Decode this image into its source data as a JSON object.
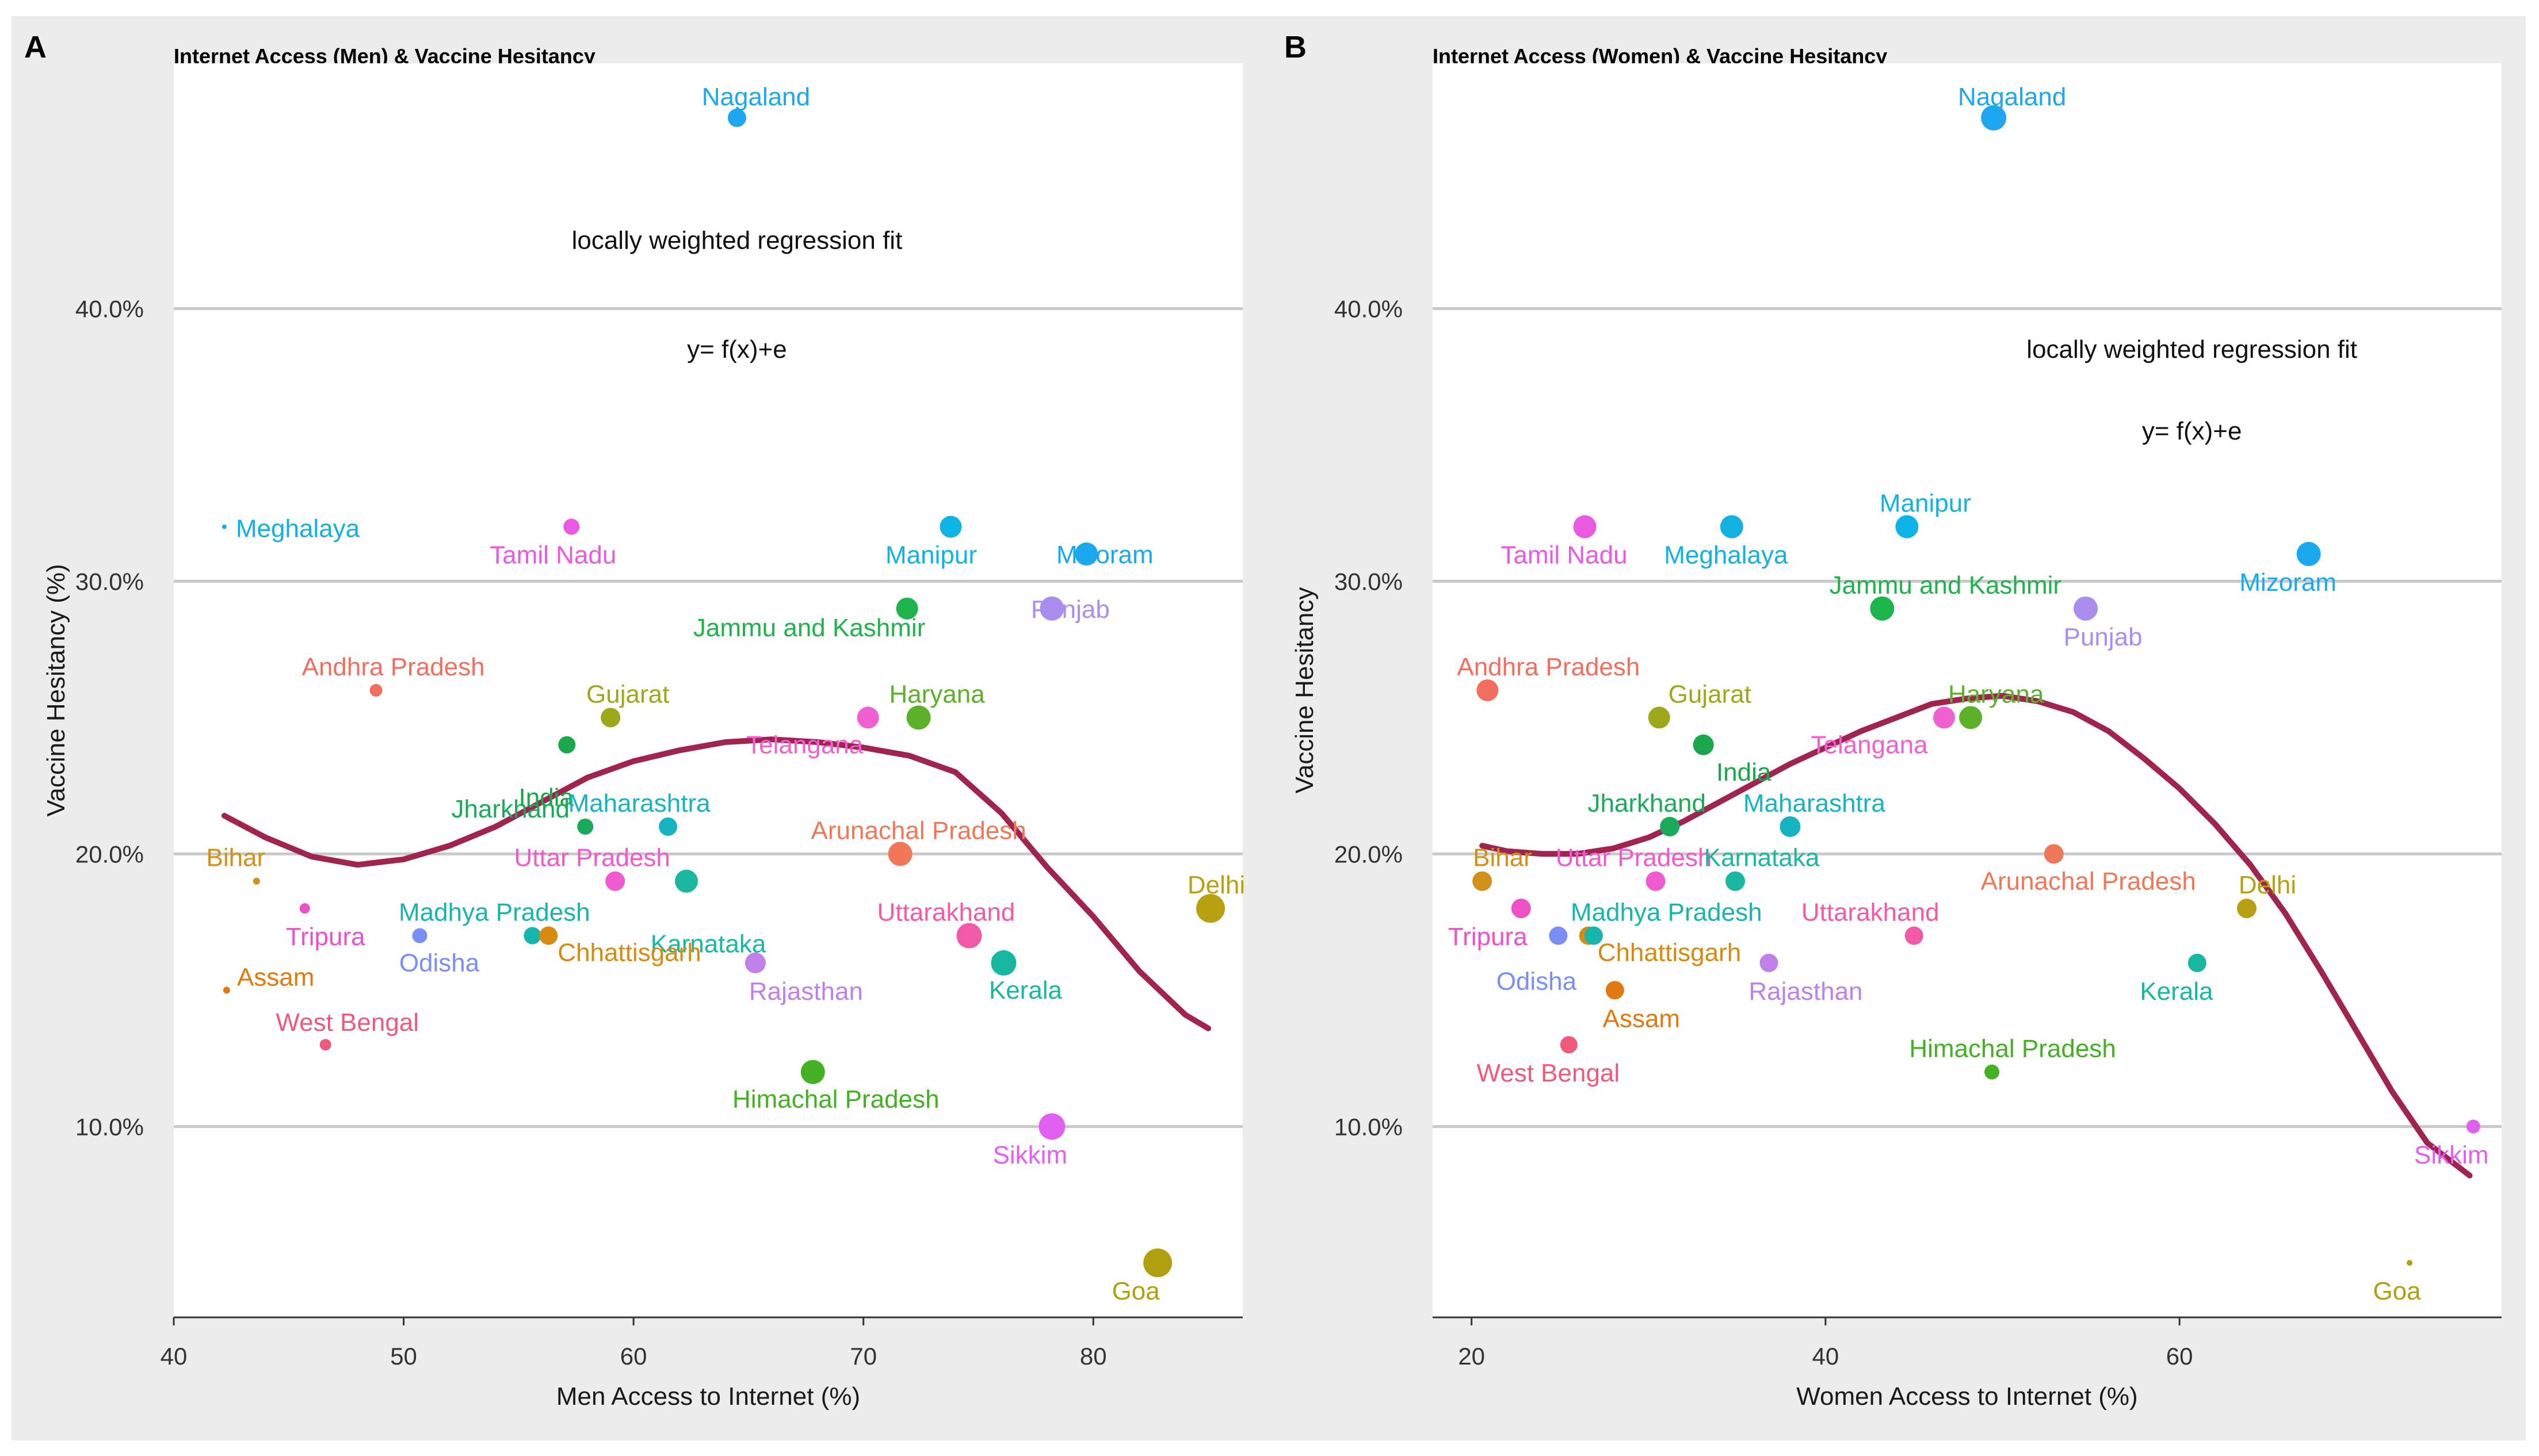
{
  "figure": {
    "panel_labels": [
      "A",
      "B"
    ]
  },
  "chart_data": [
    {
      "type": "scatter",
      "panel": "A",
      "title": "Internet Access (Men) & Vaccine Hesitancy",
      "xlabel": "Men Access to Internet (%)",
      "ylabel": "Vaccine Hesitancy (%)",
      "xlim": [
        40,
        86.5
      ],
      "ylim": [
        3.0,
        49.0
      ],
      "xticks": [
        40,
        50,
        60,
        70,
        80
      ],
      "xtick_labels": [
        "40",
        "50",
        "60",
        "70",
        "80"
      ],
      "yticks": [
        10,
        20,
        30,
        40
      ],
      "ytick_labels": [
        "10.0%",
        "20.0%",
        "30.0%",
        "40.0%"
      ],
      "annotations": [
        {
          "text": "locally weighted regression fit",
          "x": 64.5,
          "y": 42.2
        },
        {
          "text": "y= f(x)+e",
          "x": 64.5,
          "y": 38.2
        }
      ],
      "fit_curve": {
        "name": "LOESS fit",
        "x": [
          42.2,
          44,
          46,
          48,
          50,
          52,
          54,
          56,
          58,
          60,
          62,
          64,
          66,
          68,
          70,
          72,
          74,
          76,
          78,
          80,
          82,
          84,
          85.0
        ],
        "y": [
          21.4,
          20.6,
          19.9,
          19.6,
          19.8,
          20.3,
          21.0,
          21.9,
          22.8,
          23.4,
          23.8,
          24.1,
          24.2,
          24.1,
          23.9,
          23.6,
          23.0,
          21.5,
          19.5,
          17.7,
          15.7,
          14.1,
          13.6
        ]
      },
      "points": [
        {
          "state": "Nagaland",
          "x": 64.5,
          "y": 47.0,
          "size": 32,
          "color": "#1ea6f0"
        },
        {
          "state": "Meghalaya",
          "x": 42.2,
          "y": 32.0,
          "size": 8,
          "color": "#14b0e0"
        },
        {
          "state": "Tamil Nadu",
          "x": 57.3,
          "y": 32.0,
          "size": 28,
          "color": "#ea5ae0"
        },
        {
          "state": "Manipur",
          "x": 73.8,
          "y": 32.0,
          "size": 38,
          "color": "#0fb4e6"
        },
        {
          "state": "Mizoram",
          "x": 79.7,
          "y": 31.0,
          "size": 40,
          "color": "#1aa8ee"
        },
        {
          "state": "Punjab",
          "x": 78.2,
          "y": 29.0,
          "size": 42,
          "color": "#a98ef0"
        },
        {
          "state": "Jammu and Kashmir",
          "x": 71.9,
          "y": 29.0,
          "size": 38,
          "color": "#1fb34c"
        },
        {
          "state": "Andhra Pradesh",
          "x": 48.8,
          "y": 26.0,
          "size": 22,
          "color": "#f26e5e"
        },
        {
          "state": "Gujarat",
          "x": 59.0,
          "y": 25.0,
          "size": 34,
          "color": "#9da81a"
        },
        {
          "state": "Telangana",
          "x": 70.2,
          "y": 25.0,
          "size": 38,
          "color": "#f060d0"
        },
        {
          "state": "Haryana",
          "x": 72.4,
          "y": 25.0,
          "size": 42,
          "color": "#5cb02a"
        },
        {
          "state": "India",
          "x": 57.1,
          "y": 24.0,
          "size": 30,
          "color": "#1aa64a"
        },
        {
          "state": "Jharkhand",
          "x": 57.9,
          "y": 21.0,
          "size": 28,
          "color": "#1aaa5a"
        },
        {
          "state": "Maharashtra",
          "x": 61.5,
          "y": 21.0,
          "size": 32,
          "color": "#18b3c0"
        },
        {
          "state": "Arunachal Pradesh",
          "x": 71.6,
          "y": 20.0,
          "size": 42,
          "color": "#f07858"
        },
        {
          "state": "Uttar Pradesh",
          "x": 59.2,
          "y": 19.0,
          "size": 34,
          "color": "#f05ad0"
        },
        {
          "state": "Karnataka",
          "x": 62.3,
          "y": 19.0,
          "size": 40,
          "color": "#1ab8a0"
        },
        {
          "state": "Bihar",
          "x": 43.6,
          "y": 19.0,
          "size": 12,
          "color": "#d0901a"
        },
        {
          "state": "Delhi",
          "x": 85.1,
          "y": 18.0,
          "size": 50,
          "color": "#b8a010"
        },
        {
          "state": "Tripura",
          "x": 45.7,
          "y": 18.0,
          "size": 18,
          "color": "#ee50c8"
        },
        {
          "state": "Uttarakhand",
          "x": 74.6,
          "y": 17.0,
          "size": 44,
          "color": "#f25aa8"
        },
        {
          "state": "Odisha",
          "x": 50.7,
          "y": 17.0,
          "size": 26,
          "color": "#7a8ef5"
        },
        {
          "state": "Madhya Pradesh",
          "x": 55.6,
          "y": 17.0,
          "size": 30,
          "color": "#18b4b0"
        },
        {
          "state": "Chhattisgarh",
          "x": 56.3,
          "y": 17.0,
          "size": 32,
          "color": "#d88a10"
        },
        {
          "state": "Kerala",
          "x": 76.1,
          "y": 16.0,
          "size": 44,
          "color": "#18b8a0"
        },
        {
          "state": "Rajasthan",
          "x": 65.3,
          "y": 16.0,
          "size": 36,
          "color": "#c080ea"
        },
        {
          "state": "Assam",
          "x": 42.3,
          "y": 15.0,
          "size": 12,
          "color": "#e07a10"
        },
        {
          "state": "West Bengal",
          "x": 46.6,
          "y": 13.0,
          "size": 20,
          "color": "#f05a7a"
        },
        {
          "state": "Himachal Pradesh",
          "x": 67.8,
          "y": 12.0,
          "size": 42,
          "color": "#44b024"
        },
        {
          "state": "Sikkim",
          "x": 78.2,
          "y": 10.0,
          "size": 46,
          "color": "#e060f0"
        },
        {
          "state": "Goa",
          "x": 82.8,
          "y": 5.0,
          "size": 50,
          "color": "#b0a010"
        }
      ]
    },
    {
      "type": "scatter",
      "panel": "B",
      "title": "Internet Access (Women) & Vaccine Hesitancy",
      "xlabel": "Women Access to Internet (%)",
      "ylabel": "Vaccine Hesitancy",
      "xlim": [
        17.8,
        78.2
      ],
      "ylim": [
        3.0,
        49.0
      ],
      "xticks": [
        20,
        40,
        60
      ],
      "xtick_labels": [
        "20",
        "40",
        "60"
      ],
      "yticks": [
        10,
        20,
        30,
        40
      ],
      "ytick_labels": [
        "10.0%",
        "20.0%",
        "30.0%",
        "40.0%"
      ],
      "annotations": [
        {
          "text": "locally weighted regression fit",
          "x": 60.7,
          "y": 38.2
        },
        {
          "text": "y= f(x)+e",
          "x": 60.7,
          "y": 35.2
        }
      ],
      "fit_curve": {
        "name": "LOESS fit",
        "x": [
          20.6,
          22,
          24,
          26,
          28,
          30,
          32,
          34,
          36,
          38,
          40,
          42,
          44,
          46,
          48,
          50,
          52,
          54,
          56,
          58,
          60,
          62,
          64,
          66,
          68,
          70,
          72,
          74,
          76.4
        ],
        "y": [
          20.3,
          20.1,
          20.0,
          20.0,
          20.2,
          20.6,
          21.2,
          21.9,
          22.6,
          23.3,
          23.9,
          24.5,
          25.0,
          25.5,
          25.7,
          25.8,
          25.6,
          25.2,
          24.5,
          23.5,
          22.4,
          21.1,
          19.6,
          17.8,
          15.7,
          13.5,
          11.3,
          9.4,
          8.2
        ]
      },
      "points": [
        {
          "state": "Nagaland",
          "x": 49.5,
          "y": 47.0,
          "size": 44,
          "color": "#1ea6f0"
        },
        {
          "state": "Tamil Nadu",
          "x": 26.4,
          "y": 32.0,
          "size": 40,
          "color": "#ea5ae0"
        },
        {
          "state": "Meghalaya",
          "x": 34.7,
          "y": 32.0,
          "size": 40,
          "color": "#14b0e0"
        },
        {
          "state": "Manipur",
          "x": 44.6,
          "y": 32.0,
          "size": 40,
          "color": "#0fb4e6"
        },
        {
          "state": "Mizoram",
          "x": 67.3,
          "y": 31.0,
          "size": 42,
          "color": "#1aa8ee"
        },
        {
          "state": "Jammu and Kashmir",
          "x": 43.2,
          "y": 29.0,
          "size": 42,
          "color": "#1fb34c"
        },
        {
          "state": "Punjab",
          "x": 54.7,
          "y": 29.0,
          "size": 42,
          "color": "#a98ef0"
        },
        {
          "state": "Andhra Pradesh",
          "x": 20.9,
          "y": 26.0,
          "size": 38,
          "color": "#f26e5e"
        },
        {
          "state": "Gujarat",
          "x": 30.6,
          "y": 25.0,
          "size": 38,
          "color": "#9da81a"
        },
        {
          "state": "Telangana",
          "x": 46.7,
          "y": 25.0,
          "size": 38,
          "color": "#f060d0"
        },
        {
          "state": "Haryana",
          "x": 48.2,
          "y": 25.0,
          "size": 40,
          "color": "#5cb02a"
        },
        {
          "state": "India",
          "x": 33.1,
          "y": 24.0,
          "size": 36,
          "color": "#1aa64a"
        },
        {
          "state": "Jharkhand",
          "x": 31.2,
          "y": 21.0,
          "size": 34,
          "color": "#1aaa5a"
        },
        {
          "state": "Maharashtra",
          "x": 38.0,
          "y": 21.0,
          "size": 36,
          "color": "#18b3c0"
        },
        {
          "state": "Arunachal Pradesh",
          "x": 52.9,
          "y": 20.0,
          "size": 34,
          "color": "#f07858"
        },
        {
          "state": "Bihar",
          "x": 20.6,
          "y": 19.0,
          "size": 34,
          "color": "#d0901a"
        },
        {
          "state": "Uttar Pradesh",
          "x": 30.4,
          "y": 19.0,
          "size": 34,
          "color": "#f05ad0"
        },
        {
          "state": "Karnataka",
          "x": 34.9,
          "y": 19.0,
          "size": 34,
          "color": "#1ab8a0"
        },
        {
          "state": "Delhi",
          "x": 63.8,
          "y": 18.0,
          "size": 34,
          "color": "#b8a010"
        },
        {
          "state": "Tripura",
          "x": 22.8,
          "y": 18.0,
          "size": 34,
          "color": "#ee50c8"
        },
        {
          "state": "Odisha",
          "x": 24.9,
          "y": 17.0,
          "size": 32,
          "color": "#7a8ef5"
        },
        {
          "state": "Chhattisgarh",
          "x": 26.6,
          "y": 17.0,
          "size": 32,
          "color": "#d88a10"
        },
        {
          "state": "Madhya Pradesh",
          "x": 26.9,
          "y": 17.0,
          "size": 32,
          "color": "#18b4b0"
        },
        {
          "state": "Uttarakhand",
          "x": 45.0,
          "y": 17.0,
          "size": 32,
          "color": "#f25aa8"
        },
        {
          "state": "Kerala",
          "x": 61.0,
          "y": 16.0,
          "size": 32,
          "color": "#18b8a0"
        },
        {
          "state": "Rajasthan",
          "x": 36.8,
          "y": 16.0,
          "size": 32,
          "color": "#c080ea"
        },
        {
          "state": "Assam",
          "x": 28.1,
          "y": 15.0,
          "size": 32,
          "color": "#e07a10"
        },
        {
          "state": "West Bengal",
          "x": 25.5,
          "y": 13.0,
          "size": 30,
          "color": "#f05a7a"
        },
        {
          "state": "Himachal Pradesh",
          "x": 49.4,
          "y": 12.0,
          "size": 26,
          "color": "#44b024"
        },
        {
          "state": "Sikkim",
          "x": 76.6,
          "y": 10.0,
          "size": 24,
          "color": "#e060f0"
        },
        {
          "state": "Goa",
          "x": 73.0,
          "y": 5.0,
          "size": 10,
          "color": "#b0a010"
        }
      ]
    }
  ]
}
